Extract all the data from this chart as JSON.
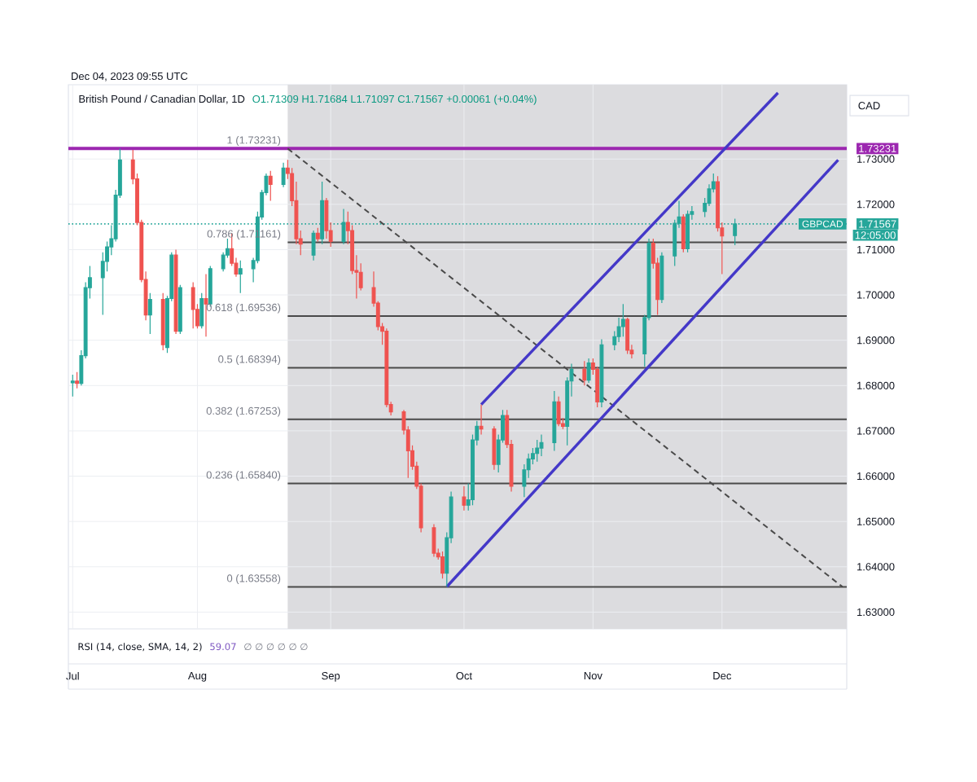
{
  "chart_data": {
    "type": "candlestick",
    "title": "British Pound / Canadian Dollar, 1D",
    "subtitle": "O1.71309 H1.71684 L1.71097 C1.71567 +0.00061 (+0.04%)",
    "ylabel": "CAD",
    "annotations": [
      "Dec 04, 2023 09:55 UTC",
      "12:05:00",
      "RSI (14, close, SMA, 14, 2)",
      "59.07",
      "∅ ∅ ∅ ∅ ∅ ∅",
      {
        "text": "GBPCAD",
        "x": "2023-12-30",
        "y": 1.71567
      }
    ],
    "xlim": [
      "2023-07-02",
      "2023-12-30"
    ],
    "xticks": [
      {
        "value": "2023-07-03",
        "label": "Jul"
      },
      {
        "value": "2023-08-01",
        "label": "Aug"
      },
      {
        "value": "2023-09-01",
        "label": "Sep"
      },
      {
        "value": "2023-10-02",
        "label": "Oct"
      },
      {
        "value": "2023-11-01",
        "label": "Nov"
      },
      {
        "value": "2023-12-01",
        "label": "Dec"
      }
    ],
    "ylim": [
      1.6263,
      1.7464
    ],
    "yticks": [
      {
        "value": 1.63,
        "label": "1.63000"
      },
      {
        "value": 1.64,
        "label": "1.64000"
      },
      {
        "value": 1.65,
        "label": "1.65000"
      },
      {
        "value": 1.66,
        "label": "1.66000"
      },
      {
        "value": 1.67,
        "label": "1.67000"
      },
      {
        "value": 1.68,
        "label": "1.68000"
      },
      {
        "value": 1.69,
        "label": "1.69000"
      },
      {
        "value": 1.7,
        "label": "1.70000"
      },
      {
        "value": 1.71,
        "label": "1.71000"
      },
      1.71567,
      {
        "value": 1.72,
        "label": "1.72000"
      },
      {
        "value": 1.73,
        "label": "1.73000"
      },
      1.73231
    ],
    "grid": true,
    "x": [
      "2023-07-03",
      "2023-07-04",
      "2023-07-05",
      "2023-07-06",
      "2023-07-07",
      "2023-07-10",
      "2023-07-11",
      "2023-07-12",
      "2023-07-13",
      "2023-07-14",
      "2023-07-17",
      "2023-07-18",
      "2023-07-19",
      "2023-07-20",
      "2023-07-21",
      "2023-07-24",
      "2023-07-25",
      "2023-07-26",
      "2023-07-27",
      "2023-07-28",
      "2023-07-31",
      "2023-08-01",
      "2023-08-02",
      "2023-08-03",
      "2023-08-04",
      "2023-08-07",
      "2023-08-08",
      "2023-08-09",
      "2023-08-10",
      "2023-08-11",
      "2023-08-14",
      "2023-08-15",
      "2023-08-16",
      "2023-08-17",
      "2023-08-18",
      "2023-08-21",
      "2023-08-22",
      "2023-08-23",
      "2023-08-24",
      "2023-08-25",
      "2023-08-28",
      "2023-08-29",
      "2023-08-30",
      "2023-08-31",
      "2023-09-01",
      "2023-09-04",
      "2023-09-05",
      "2023-09-06",
      "2023-09-07",
      "2023-09-08",
      "2023-09-11",
      "2023-09-12",
      "2023-09-13",
      "2023-09-14",
      "2023-09-15",
      "2023-09-18",
      "2023-09-19",
      "2023-09-20",
      "2023-09-21",
      "2023-09-22",
      "2023-09-25",
      "2023-09-26",
      "2023-09-27",
      "2023-09-28",
      "2023-09-29",
      "2023-10-02",
      "2023-10-03",
      "2023-10-04",
      "2023-10-05",
      "2023-10-06",
      "2023-10-09",
      "2023-10-10",
      "2023-10-11",
      "2023-10-12",
      "2023-10-13",
      "2023-10-16",
      "2023-10-17",
      "2023-10-18",
      "2023-10-19",
      "2023-10-20",
      "2023-10-23",
      "2023-10-24",
      "2023-10-25",
      "2023-10-26",
      "2023-10-27",
      "2023-10-30",
      "2023-10-31",
      "2023-11-01",
      "2023-11-02",
      "2023-11-03",
      "2023-11-06",
      "2023-11-07",
      "2023-11-08",
      "2023-11-09",
      "2023-11-10",
      "2023-11-13",
      "2023-11-14",
      "2023-11-15",
      "2023-11-16",
      "2023-11-17",
      "2023-11-20",
      "2023-11-21",
      "2023-11-22",
      "2023-11-23",
      "2023-11-24",
      "2023-11-27",
      "2023-11-28",
      "2023-11-29",
      "2023-11-30",
      "2023-12-01",
      "2023-12-04"
    ],
    "ohlc": [
      [
        1.6806,
        1.6824,
        1.6776,
        1.681
      ],
      [
        1.681,
        1.683,
        1.6794,
        1.6805
      ],
      [
        1.6805,
        1.6878,
        1.68,
        1.6866
      ],
      [
        1.6866,
        1.7028,
        1.686,
        1.7016
      ],
      [
        1.7016,
        1.7064,
        1.6992,
        1.7038
      ],
      [
        1.7038,
        1.7094,
        1.6956,
        1.7074
      ],
      [
        1.7074,
        1.7118,
        1.7052,
        1.7106
      ],
      [
        1.7106,
        1.7154,
        1.7088,
        1.7124
      ],
      [
        1.7124,
        1.7232,
        1.7118,
        1.722
      ],
      [
        1.722,
        1.7323,
        1.7214,
        1.7298
      ],
      [
        1.7298,
        1.732,
        1.7244,
        1.7256
      ],
      [
        1.7256,
        1.7268,
        1.7154,
        1.716
      ],
      [
        1.716,
        1.7166,
        1.7028,
        1.7034
      ],
      [
        1.7034,
        1.7052,
        1.6944,
        1.6956
      ],
      [
        1.6956,
        1.7004,
        1.6914,
        1.699
      ],
      [
        1.699,
        1.7004,
        1.6878,
        1.689
      ],
      [
        1.6884,
        1.6998,
        1.6872,
        1.6992
      ],
      [
        1.6992,
        1.7094,
        1.6986,
        1.7088
      ],
      [
        1.7088,
        1.71,
        1.6914,
        1.692
      ],
      [
        1.692,
        1.7022,
        1.6914,
        1.7016
      ],
      [
        1.7016,
        1.7028,
        1.6926,
        1.6968
      ],
      [
        1.6968,
        1.698,
        1.6926,
        1.6932
      ],
      [
        1.6932,
        1.7004,
        1.6926,
        1.6992
      ],
      [
        1.6992,
        1.7046,
        1.6908,
        1.698
      ],
      [
        1.698,
        1.7064,
        1.6974,
        1.7058
      ],
      [
        1.7058,
        1.7094,
        1.7052,
        1.7088
      ],
      [
        1.7088,
        1.7124,
        1.7082,
        1.7102
      ],
      [
        1.7102,
        1.7136,
        1.7064,
        1.707
      ],
      [
        1.707,
        1.7082,
        1.704,
        1.7046
      ],
      [
        1.7046,
        1.7076,
        1.7004,
        1.7058
      ],
      [
        1.7058,
        1.7082,
        1.7028,
        1.7076
      ],
      [
        1.7076,
        1.7184,
        1.707,
        1.7172
      ],
      [
        1.7172,
        1.7232,
        1.7166,
        1.7226
      ],
      [
        1.7226,
        1.7268,
        1.722,
        1.7262
      ],
      [
        1.7262,
        1.7274,
        1.7208,
        1.7244
      ],
      [
        1.7244,
        1.7292,
        1.7238,
        1.728
      ],
      [
        1.728,
        1.7298,
        1.7256,
        1.7268
      ],
      [
        1.7268,
        1.728,
        1.7196,
        1.7208
      ],
      [
        1.7208,
        1.725,
        1.7112,
        1.7124
      ],
      [
        1.7124,
        1.7142,
        1.7088,
        1.7112
      ],
      [
        1.7088,
        1.7142,
        1.7076,
        1.7136
      ],
      [
        1.7136,
        1.7148,
        1.7118,
        1.7124
      ],
      [
        1.7124,
        1.725,
        1.7112,
        1.7208
      ],
      [
        1.7208,
        1.7214,
        1.7124,
        1.7142
      ],
      [
        1.7142,
        1.716,
        1.7106,
        1.7118
      ],
      [
        1.7118,
        1.719,
        1.7112,
        1.716
      ],
      [
        1.716,
        1.7184,
        1.7112,
        1.7142
      ],
      [
        1.7142,
        1.7154,
        1.7046,
        1.7054
      ],
      [
        1.7054,
        1.7088,
        1.6992,
        1.705
      ],
      [
        1.705,
        1.707,
        1.701,
        1.7016
      ],
      [
        1.7016,
        1.7052,
        1.6974,
        1.6982
      ],
      [
        1.6982,
        1.6986,
        1.6922,
        1.693
      ],
      [
        1.693,
        1.6938,
        1.689,
        1.692
      ],
      [
        1.692,
        1.6926,
        1.6752,
        1.6758
      ],
      [
        1.6758,
        1.6764,
        1.6734,
        1.6742
      ],
      [
        1.6742,
        1.6746,
        1.6692,
        1.6702
      ],
      [
        1.6702,
        1.671,
        1.6596,
        1.6656
      ],
      [
        1.6656,
        1.6668,
        1.6614,
        1.6622
      ],
      [
        1.6622,
        1.6632,
        1.6572,
        1.6578
      ],
      [
        1.6578,
        1.6584,
        1.6476,
        1.6486
      ],
      [
        1.6486,
        1.6494,
        1.6422,
        1.643
      ],
      [
        1.643,
        1.644,
        1.6416,
        1.6422
      ],
      [
        1.6422,
        1.6434,
        1.6374,
        1.6386
      ],
      [
        1.6386,
        1.6476,
        1.6356,
        1.6464
      ],
      [
        1.6464,
        1.6566,
        1.6452,
        1.6554
      ],
      [
        1.6554,
        1.6578,
        1.6524,
        1.6536
      ],
      [
        1.6536,
        1.6584,
        1.6524,
        1.6548
      ],
      [
        1.6548,
        1.6692,
        1.6536,
        1.668
      ],
      [
        1.668,
        1.6722,
        1.6668,
        1.671
      ],
      [
        1.671,
        1.6758,
        1.6692,
        1.6704
      ],
      [
        1.6704,
        1.671,
        1.6614,
        1.6626
      ],
      [
        1.6626,
        1.6692,
        1.6608,
        1.668
      ],
      [
        1.668,
        1.6746,
        1.6674,
        1.6734
      ],
      [
        1.6734,
        1.6746,
        1.6662,
        1.667
      ],
      [
        1.667,
        1.668,
        1.6566,
        1.6578
      ],
      [
        1.6578,
        1.6626,
        1.6554,
        1.6614
      ],
      [
        1.6614,
        1.665,
        1.6596,
        1.6638
      ],
      [
        1.6638,
        1.6662,
        1.6626,
        1.665
      ],
      [
        1.665,
        1.668,
        1.6632,
        1.6662
      ],
      [
        1.6662,
        1.6692,
        1.6644,
        1.6674
      ],
      [
        1.6674,
        1.6788,
        1.6656,
        1.6764
      ],
      [
        1.6764,
        1.6776,
        1.671,
        1.6716
      ],
      [
        1.6716,
        1.6728,
        1.6704,
        1.671
      ],
      [
        1.671,
        1.6818,
        1.6668,
        1.681
      ],
      [
        1.681,
        1.6848,
        1.6776,
        1.6836
      ],
      [
        1.6836,
        1.6854,
        1.68,
        1.6812
      ],
      [
        1.6812,
        1.686,
        1.6806,
        1.685
      ],
      [
        1.685,
        1.686,
        1.6824,
        1.6836
      ],
      [
        1.6836,
        1.6842,
        1.6752,
        1.6764
      ],
      [
        1.6764,
        1.6902,
        1.6752,
        1.689
      ],
      [
        1.689,
        1.692,
        1.6878,
        1.6908
      ],
      [
        1.6908,
        1.695,
        1.6896,
        1.693
      ],
      [
        1.693,
        1.698,
        1.6908,
        1.6946
      ],
      [
        1.6946,
        1.695,
        1.687,
        1.6878
      ],
      [
        1.6878,
        1.689,
        1.686,
        1.687
      ],
      [
        1.687,
        1.6956,
        1.6842,
        1.695
      ],
      [
        1.695,
        1.7124,
        1.6944,
        1.7114
      ],
      [
        1.7114,
        1.7124,
        1.7058,
        1.707
      ],
      [
        1.707,
        1.7082,
        1.6956,
        1.699
      ],
      [
        1.699,
        1.7094,
        1.6982,
        1.7086
      ],
      [
        1.7086,
        1.7166,
        1.7064,
        1.7158
      ],
      [
        1.7158,
        1.7208,
        1.7148,
        1.7172
      ],
      [
        1.7172,
        1.7178,
        1.7094,
        1.7102
      ],
      [
        1.7102,
        1.7186,
        1.7094,
        1.7178
      ],
      [
        1.7178,
        1.7196,
        1.7166,
        1.7184
      ],
      [
        1.7184,
        1.7214,
        1.7172,
        1.7202
      ],
      [
        1.7202,
        1.7244,
        1.7196,
        1.7234
      ],
      [
        1.7234,
        1.7268,
        1.7226,
        1.725
      ],
      [
        1.725,
        1.7262,
        1.714,
        1.7148
      ],
      [
        1.7148,
        1.716,
        1.7046,
        1.713
      ],
      [
        1.71309,
        1.71684,
        1.71097,
        1.71567
      ]
    ],
    "colors": [
      "#26a69a",
      "#ef5350",
      "#26a69a",
      "#26a69a",
      "#26a69a",
      "#26a69a",
      "#26a69a",
      "#26a69a",
      "#26a69a",
      "#26a69a",
      "#ef5350",
      "#ef5350",
      "#ef5350",
      "#ef5350",
      "#26a69a",
      "#ef5350",
      "#26a69a",
      "#26a69a",
      "#ef5350",
      "#26a69a",
      "#ef5350",
      "#ef5350",
      "#26a69a",
      "#ef5350",
      "#26a69a",
      "#26a69a",
      "#26a69a",
      "#ef5350",
      "#ef5350",
      "#26a69a",
      "#26a69a",
      "#26a69a",
      "#26a69a",
      "#26a69a",
      "#ef5350",
      "#26a69a",
      "#ef5350",
      "#ef5350",
      "#ef5350",
      "#ef5350",
      "#26a69a",
      "#ef5350",
      "#26a69a",
      "#ef5350",
      "#ef5350",
      "#26a69a",
      "#ef5350",
      "#ef5350",
      "#ef5350",
      "#ef5350",
      "#ef5350",
      "#ef5350",
      "#ef5350",
      "#ef5350",
      "#ef5350",
      "#ef5350",
      "#ef5350",
      "#ef5350",
      "#ef5350",
      "#ef5350",
      "#ef5350",
      "#ef5350",
      "#ef5350",
      "#26a69a",
      "#26a69a",
      "#ef5350",
      "#26a69a",
      "#26a69a",
      "#26a69a",
      "#ef5350",
      "#ef5350",
      "#26a69a",
      "#26a69a",
      "#ef5350",
      "#ef5350",
      "#26a69a",
      "#26a69a",
      "#26a69a",
      "#26a69a",
      "#26a69a",
      "#26a69a",
      "#ef5350",
      "#ef5350",
      "#26a69a",
      "#26a69a",
      "#ef5350",
      "#26a69a",
      "#ef5350",
      "#ef5350",
      "#26a69a",
      "#26a69a",
      "#26a69a",
      "#26a69a",
      "#ef5350",
      "#ef5350",
      "#26a69a",
      "#26a69a",
      "#ef5350",
      "#ef5350",
      "#26a69a",
      "#26a69a",
      "#26a69a",
      "#ef5350",
      "#26a69a",
      "#26a69a",
      "#26a69a",
      "#26a69a",
      "#26a69a",
      "#ef5350",
      "#ef5350",
      "#26a69a"
    ],
    "series": [
      {
        "type": "line",
        "name": "0.786 (1.71161)",
        "color": "#4a4a4a",
        "x": [
          "2023-08-22",
          "2023-12-30"
        ],
        "values": [
          1.71161,
          1.71161
        ]
      },
      {
        "type": "line",
        "name": "0.618 (1.69536)",
        "color": "#4a4a4a",
        "x": [
          "2023-08-22",
          "2023-12-30"
        ],
        "values": [
          1.69536,
          1.69536
        ]
      },
      {
        "type": "line",
        "name": "0.5 (1.68394)",
        "color": "#4a4a4a",
        "x": [
          "2023-08-22",
          "2023-12-30"
        ],
        "values": [
          1.68394,
          1.68394
        ]
      },
      {
        "type": "line",
        "name": "0.382 (1.67253)",
        "color": "#4a4a4a",
        "x": [
          "2023-08-22",
          "2023-12-30"
        ],
        "values": [
          1.67253,
          1.67253
        ]
      },
      {
        "type": "line",
        "name": "0.236 (1.65840)",
        "color": "#4a4a4a",
        "x": [
          "2023-08-22",
          "2023-12-30"
        ],
        "values": [
          1.6584,
          1.6584
        ]
      },
      {
        "type": "line",
        "name": "0 (1.63558)",
        "color": "#4a4a4a",
        "x": [
          "2023-08-22",
          "2023-12-30"
        ],
        "values": [
          1.63558,
          1.63558
        ]
      },
      {
        "type": "line",
        "color": "#4a4a4a",
        "line_style": "dashed",
        "x": [
          "2023-08-22",
          "2023-12-29"
        ],
        "values": [
          1.73231,
          1.63558
        ]
      },
      {
        "type": "line",
        "color": "#4438c8",
        "x": [
          "2023-09-28",
          "2023-12-28"
        ],
        "values": [
          1.6356,
          1.7298
        ]
      },
      {
        "type": "line",
        "color": "#4438c8",
        "x": [
          "2023-10-06",
          "2023-12-14"
        ],
        "values": [
          1.6758,
          1.7446
        ]
      }
    ],
    "ref_lines": [
      {
        "axis": "y",
        "value": 1.73231,
        "label": "1 (1.73231)",
        "color": "#9c27b0"
      },
      {
        "axis": "y",
        "value": 1.71567,
        "color": "#26a69a",
        "line_style": "dotted"
      }
    ],
    "bands": [
      {
        "axis": "x",
        "from": "2023-08-22",
        "to": "2023-12-30",
        "color": "#dcdcdf"
      }
    ]
  }
}
